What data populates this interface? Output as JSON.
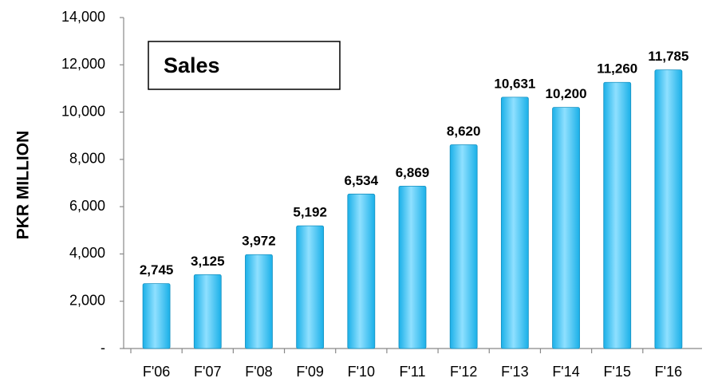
{
  "chart_data": {
    "type": "bar",
    "title": "Sales",
    "y_label": "PKR MILLION",
    "categories": [
      "F'06",
      "F'07",
      "F'08",
      "F'09",
      "F'10",
      "F'11",
      "F'12",
      "F'13",
      "F'14",
      "F'15",
      "F'16"
    ],
    "values": [
      2745,
      3125,
      3972,
      5192,
      6534,
      6869,
      8620,
      10631,
      10200,
      11260,
      11785
    ],
    "value_labels": [
      "2,745",
      "3,125",
      "3,972",
      "5,192",
      "6,534",
      "6,869",
      "8,620",
      "10,631",
      "10,200",
      "11,260",
      "11,785"
    ],
    "color": "#1ab0e8",
    "ylim": [
      0,
      14000
    ],
    "yticks": [
      {
        "value": 0,
        "label": "-"
      },
      {
        "value": 2000,
        "label": "2,000"
      },
      {
        "value": 4000,
        "label": "4,000"
      },
      {
        "value": 6000,
        "label": "6,000"
      },
      {
        "value": 8000,
        "label": "8,000"
      },
      {
        "value": 10000,
        "label": "10,000"
      },
      {
        "value": 12000,
        "label": "12,000"
      },
      {
        "value": 14000,
        "label": "14,000"
      }
    ],
    "grid": false
  }
}
